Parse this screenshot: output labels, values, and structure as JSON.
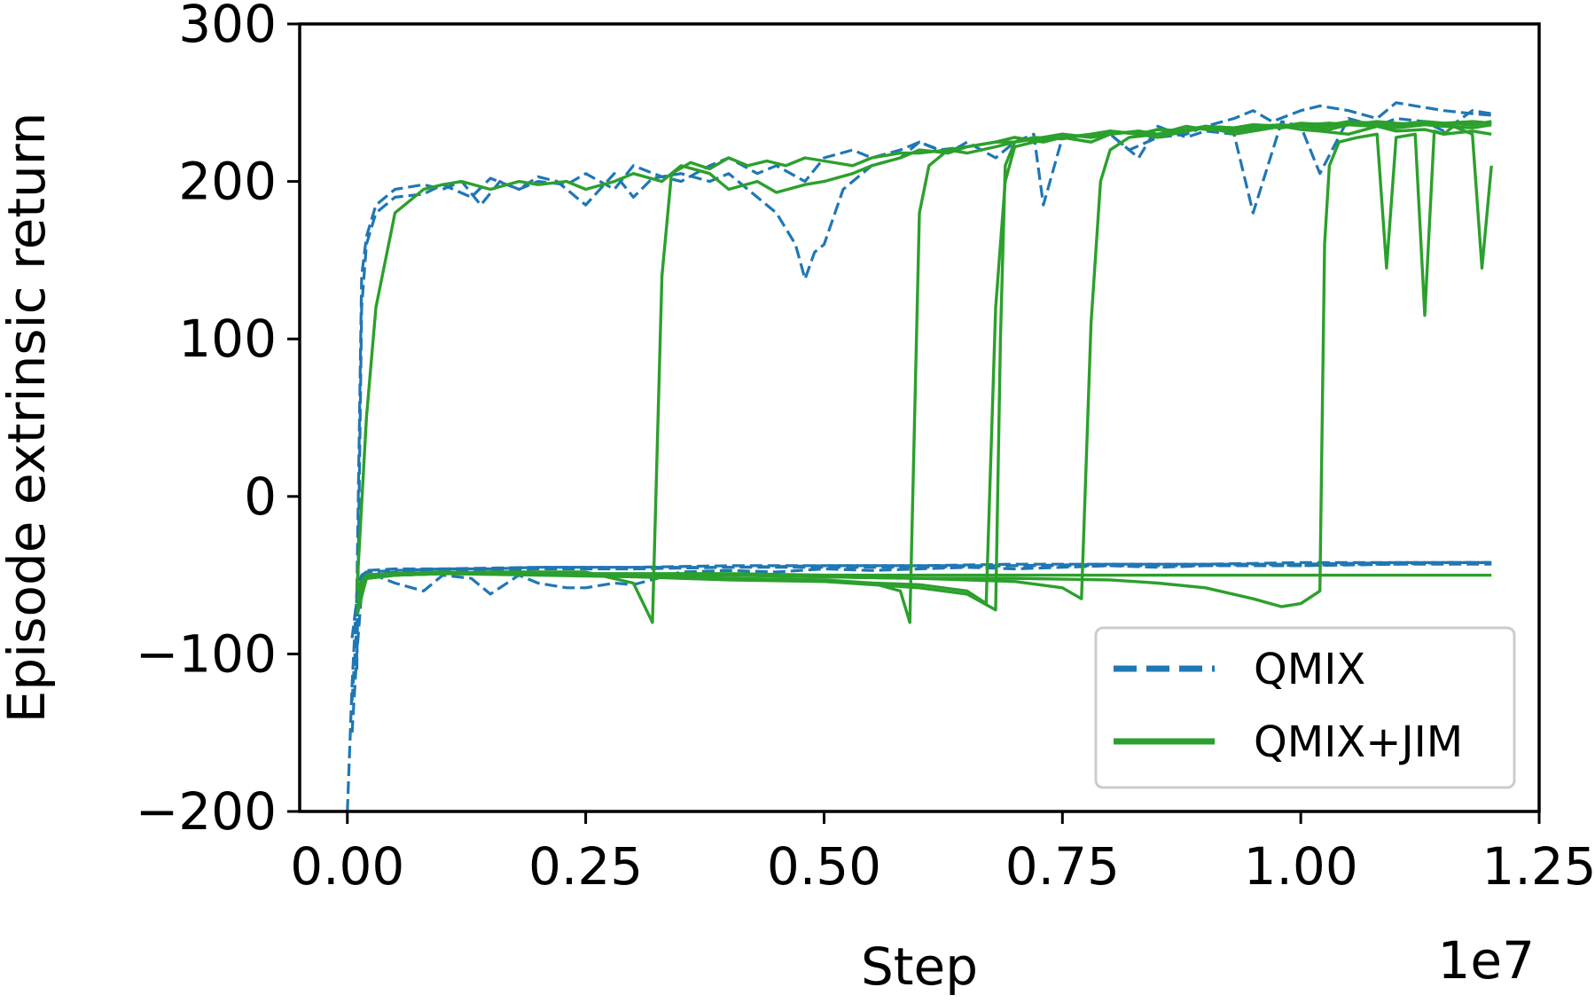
{
  "chart_data": {
    "type": "line",
    "title": "",
    "xlabel": "Step",
    "ylabel": "Episode extrinsic return",
    "x_offset_label": "1e7",
    "xlim": [
      -0.05,
      1.25
    ],
    "ylim": [
      -200,
      300
    ],
    "x_ticks": [
      0.0,
      0.25,
      0.5,
      0.75,
      1.0,
      1.25
    ],
    "x_tick_labels": [
      "0.00",
      "0.25",
      "0.50",
      "0.75",
      "1.00",
      "1.25"
    ],
    "y_ticks": [
      -200,
      -100,
      0,
      100,
      200,
      300
    ],
    "y_tick_labels": [
      "−200",
      "−100",
      "0",
      "100",
      "200",
      "300"
    ],
    "grid": false,
    "legend_position": "lower-right",
    "colors": {
      "qmix": "#1f77b4",
      "qmix_jim": "#2ca02c"
    },
    "legend": [
      {
        "label": "QMIX",
        "style": "dashed",
        "color": "#1f77b4"
      },
      {
        "label": "QMIX+JIM",
        "style": "solid",
        "color": "#2ca02c"
      }
    ],
    "series": [
      {
        "group": "QMIX",
        "style": "dashed",
        "color": "#1f77b4",
        "x": [
          0.01,
          0.015,
          0.02,
          0.03,
          0.05,
          0.08,
          0.1,
          0.12,
          0.14,
          0.16,
          0.18,
          0.2,
          0.22,
          0.25,
          0.28,
          0.3,
          0.32,
          0.35,
          0.38,
          0.4,
          0.43,
          0.45,
          0.47,
          0.48,
          0.49,
          0.5,
          0.52,
          0.55,
          0.58,
          0.6,
          0.62,
          0.65,
          0.68,
          0.7,
          0.72,
          0.75,
          0.78,
          0.8,
          0.82,
          0.85,
          0.88,
          0.9,
          0.93,
          0.95,
          0.97,
          1.0,
          1.02,
          1.05,
          1.08,
          1.1,
          1.12,
          1.15,
          1.18,
          1.2
        ],
        "y": [
          -60,
          140,
          165,
          185,
          195,
          198,
          195,
          200,
          185,
          200,
          195,
          203,
          200,
          185,
          205,
          190,
          202,
          205,
          200,
          205,
          190,
          180,
          160,
          138,
          155,
          160,
          195,
          210,
          215,
          225,
          220,
          222,
          225,
          228,
          225,
          228,
          225,
          230,
          220,
          228,
          230,
          235,
          240,
          245,
          238,
          245,
          248,
          245,
          240,
          250,
          248,
          245,
          243,
          242
        ]
      },
      {
        "group": "QMIX",
        "style": "dashed",
        "color": "#1f77b4",
        "x": [
          0.01,
          0.015,
          0.02,
          0.03,
          0.05,
          0.08,
          0.1,
          0.13,
          0.15,
          0.18,
          0.2,
          0.23,
          0.25,
          0.28,
          0.3,
          0.33,
          0.35,
          0.38,
          0.4,
          0.43,
          0.45,
          0.48,
          0.5,
          0.53,
          0.55,
          0.58,
          0.6,
          0.63,
          0.65,
          0.68,
          0.7,
          0.72,
          0.73,
          0.75,
          0.78,
          0.8,
          0.83,
          0.85,
          0.88,
          0.9,
          0.93,
          0.95,
          0.98,
          1.0,
          1.02,
          1.05,
          1.08,
          1.1,
          1.13,
          1.15,
          1.18,
          1.2
        ],
        "y": [
          -110,
          120,
          160,
          180,
          190,
          192,
          198,
          190,
          202,
          195,
          200,
          198,
          205,
          195,
          210,
          203,
          200,
          210,
          215,
          205,
          210,
          200,
          215,
          220,
          215,
          220,
          225,
          218,
          225,
          215,
          225,
          230,
          185,
          228,
          225,
          230,
          215,
          235,
          228,
          232,
          230,
          180,
          238,
          235,
          205,
          240,
          235,
          240,
          238,
          232,
          245,
          243
        ]
      },
      {
        "group": "QMIX",
        "style": "dashed",
        "color": "#1f77b4",
        "x": [
          0.0,
          0.005,
          0.01,
          0.015,
          0.02,
          0.05,
          0.08,
          0.1,
          0.13,
          0.15,
          0.18,
          0.2,
          0.23,
          0.25,
          0.28,
          0.3,
          0.35,
          0.4,
          0.45,
          0.5,
          0.55,
          0.6,
          0.65,
          0.7,
          0.75,
          0.8,
          0.85,
          0.9,
          0.95,
          1.0,
          1.05,
          1.1,
          1.15,
          1.2
        ],
        "y": [
          -200,
          -120,
          -60,
          -50,
          -48,
          -55,
          -60,
          -50,
          -52,
          -62,
          -50,
          -55,
          -58,
          -58,
          -55,
          -56,
          -48,
          -47,
          -48,
          -46,
          -47,
          -46,
          -45,
          -46,
          -45,
          -44,
          -45,
          -44,
          -43,
          -44,
          -43,
          -43,
          -42,
          -42
        ]
      },
      {
        "group": "QMIX",
        "style": "dashed",
        "color": "#1f77b4",
        "x": [
          0.005,
          0.01,
          0.015,
          0.02,
          0.05,
          0.1,
          0.15,
          0.2,
          0.3,
          0.4,
          0.5,
          0.6,
          0.7,
          0.8,
          0.9,
          1.0,
          1.1,
          1.2
        ],
        "y": [
          -130,
          -80,
          -55,
          -48,
          -47,
          -46,
          -46,
          -45,
          -45,
          -44,
          -44,
          -44,
          -43,
          -43,
          -43,
          -42,
          -42,
          -42
        ]
      },
      {
        "group": "QMIX",
        "style": "dashed",
        "color": "#1f77b4",
        "x": [
          0.005,
          0.01,
          0.015,
          0.02,
          0.05,
          0.1,
          0.15,
          0.2,
          0.3,
          0.4,
          0.5,
          0.6,
          0.7,
          0.8,
          0.9,
          1.0,
          1.1,
          1.2
        ],
        "y": [
          -150,
          -100,
          -60,
          -50,
          -48,
          -47,
          -47,
          -46,
          -46,
          -45,
          -45,
          -45,
          -44,
          -44,
          -44,
          -44,
          -43,
          -43
        ]
      },
      {
        "group": "QMIX",
        "style": "dashed",
        "color": "#1f77b4",
        "x": [
          0.005,
          0.01,
          0.015,
          0.02,
          0.05,
          0.1,
          0.2,
          0.3,
          0.4,
          0.5,
          0.6,
          0.7,
          0.8,
          0.9,
          1.0,
          1.1,
          1.2
        ],
        "y": [
          -90,
          -65,
          -52,
          -47,
          -46,
          -46,
          -45,
          -45,
          -45,
          -44,
          -44,
          -44,
          -43,
          -43,
          -43,
          -42,
          -42
        ]
      },
      {
        "group": "QMIX+JIM",
        "style": "solid",
        "color": "#2ca02c",
        "x": [
          0.01,
          0.02,
          0.03,
          0.05,
          0.08,
          0.1,
          0.12,
          0.15,
          0.18,
          0.2,
          0.23,
          0.25,
          0.28,
          0.3,
          0.33,
          0.35,
          0.38,
          0.4,
          0.43,
          0.45,
          0.48,
          0.5,
          0.53,
          0.55,
          0.58,
          0.6,
          0.63,
          0.65,
          0.68,
          0.7,
          0.73,
          0.75,
          0.78,
          0.8,
          0.83,
          0.85,
          0.88,
          0.9,
          0.93,
          0.95,
          0.98,
          1.0,
          1.02,
          1.05,
          1.08,
          1.1,
          1.13,
          1.15,
          1.18,
          1.2
        ],
        "y": [
          -60,
          50,
          120,
          180,
          195,
          198,
          200,
          195,
          200,
          198,
          200,
          195,
          200,
          205,
          200,
          210,
          205,
          195,
          200,
          193,
          198,
          200,
          205,
          210,
          215,
          220,
          218,
          222,
          225,
          228,
          225,
          228,
          230,
          232,
          230,
          228,
          232,
          235,
          230,
          232,
          235,
          233,
          232,
          230,
          235,
          232,
          233,
          230,
          232,
          230
        ]
      },
      {
        "group": "QMIX+JIM",
        "style": "solid",
        "color": "#2ca02c",
        "x": [
          0.01,
          0.02,
          0.05,
          0.1,
          0.15,
          0.2,
          0.25,
          0.3,
          0.32,
          0.33,
          0.34,
          0.36,
          0.38,
          0.4,
          0.42,
          0.44,
          0.46,
          0.48,
          0.5,
          0.53,
          0.55,
          0.58,
          0.6,
          0.63,
          0.65,
          0.68,
          0.7,
          0.73,
          0.75,
          0.78,
          0.8,
          0.83,
          0.85,
          0.88,
          0.9,
          0.93,
          0.95,
          0.98,
          1.0,
          1.03,
          1.05,
          1.08,
          1.1,
          1.13,
          1.15,
          1.18,
          1.2
        ],
        "y": [
          -65,
          -52,
          -50,
          -49,
          -48,
          -48,
          -48,
          -55,
          -80,
          140,
          205,
          212,
          208,
          215,
          210,
          213,
          210,
          215,
          213,
          210,
          215,
          218,
          218,
          220,
          222,
          225,
          225,
          228,
          230,
          228,
          230,
          232,
          230,
          233,
          235,
          232,
          233,
          235,
          235,
          233,
          236,
          235,
          234,
          236,
          235,
          234,
          236
        ]
      },
      {
        "group": "QMIX+JIM",
        "style": "solid",
        "color": "#2ca02c",
        "x": [
          0.01,
          0.02,
          0.05,
          0.1,
          0.2,
          0.3,
          0.4,
          0.5,
          0.55,
          0.58,
          0.59,
          0.6,
          0.61,
          0.63,
          0.65,
          0.68,
          0.7,
          0.73,
          0.75,
          0.78,
          0.8,
          0.83,
          0.85,
          0.88,
          0.9,
          0.93,
          0.95,
          0.98,
          1.0,
          1.03,
          1.05,
          1.08,
          1.1,
          1.13,
          1.15,
          1.18,
          1.2
        ],
        "y": [
          -70,
          -52,
          -50,
          -49,
          -49,
          -50,
          -52,
          -53,
          -55,
          -60,
          -80,
          180,
          210,
          220,
          218,
          222,
          225,
          228,
          230,
          228,
          232,
          230,
          233,
          232,
          235,
          234,
          236,
          235,
          237,
          236,
          238,
          237,
          236,
          238,
          237,
          236,
          238
        ]
      },
      {
        "group": "QMIX+JIM",
        "style": "solid",
        "color": "#2ca02c",
        "x": [
          0.01,
          0.02,
          0.05,
          0.1,
          0.2,
          0.3,
          0.4,
          0.5,
          0.6,
          0.65,
          0.67,
          0.68,
          0.69,
          0.7,
          0.72,
          0.75,
          0.78,
          0.8,
          0.83,
          0.85,
          0.88,
          0.9,
          0.93,
          0.95,
          0.98,
          1.0,
          1.03,
          1.05,
          1.08,
          1.1,
          1.13,
          1.15,
          1.18,
          1.2
        ],
        "y": [
          -65,
          -52,
          -50,
          -49,
          -50,
          -51,
          -53,
          -54,
          -56,
          -60,
          -68,
          120,
          200,
          222,
          225,
          228,
          225,
          230,
          232,
          230,
          235,
          233,
          232,
          235,
          234,
          236,
          235,
          237,
          236,
          235,
          237,
          236,
          238,
          237
        ]
      },
      {
        "group": "QMIX+JIM",
        "style": "solid",
        "color": "#2ca02c",
        "x": [
          0.01,
          0.02,
          0.05,
          0.1,
          0.2,
          0.3,
          0.4,
          0.5,
          0.6,
          0.65,
          0.68,
          0.685,
          0.69,
          0.7,
          0.72,
          0.75,
          0.78,
          0.8,
          0.83,
          0.85,
          0.88,
          0.9,
          0.93,
          0.95,
          0.98,
          1.0,
          1.03,
          1.05,
          1.08,
          1.1,
          1.13,
          1.15,
          1.18,
          1.2
        ],
        "y": [
          -60,
          -50,
          -49,
          -48,
          -49,
          -50,
          -52,
          -54,
          -58,
          -62,
          -72,
          100,
          210,
          225,
          228,
          227,
          230,
          232,
          230,
          233,
          232,
          235,
          234,
          236,
          235,
          236,
          237,
          236,
          238,
          237,
          236,
          237,
          238,
          237
        ]
      },
      {
        "group": "QMIX+JIM",
        "style": "solid",
        "color": "#2ca02c",
        "x": [
          0.01,
          0.02,
          0.05,
          0.1,
          0.2,
          0.3,
          0.4,
          0.5,
          0.6,
          0.7,
          0.75,
          0.77,
          0.78,
          0.79,
          0.8,
          0.82,
          0.85,
          0.88,
          0.9,
          0.93,
          0.95,
          0.98,
          1.0,
          1.03,
          1.05,
          1.08,
          1.1,
          1.13,
          1.15,
          1.18,
          1.2
        ],
        "y": [
          -70,
          -52,
          -50,
          -49,
          -49,
          -50,
          -50,
          -51,
          -52,
          -54,
          -58,
          -65,
          110,
          200,
          220,
          228,
          230,
          232,
          234,
          233,
          235,
          236,
          235,
          237,
          236,
          237,
          236,
          238,
          237,
          236,
          238
        ]
      },
      {
        "group": "QMIX+JIM",
        "style": "solid",
        "color": "#2ca02c",
        "x": [
          0.01,
          0.02,
          0.05,
          0.1,
          0.2,
          0.3,
          0.4,
          0.5,
          0.6,
          0.7,
          0.8,
          0.85,
          0.9,
          0.95,
          0.98,
          1.0,
          1.02,
          1.025,
          1.03,
          1.04,
          1.06,
          1.08,
          1.09,
          1.1,
          1.12,
          1.13,
          1.14,
          1.15,
          1.16,
          1.18,
          1.19,
          1.2
        ],
        "y": [
          -75,
          -52,
          -50,
          -49,
          -49,
          -50,
          -50,
          -51,
          -52,
          -52,
          -53,
          -55,
          -58,
          -65,
          -70,
          -68,
          -60,
          160,
          210,
          225,
          228,
          230,
          145,
          228,
          230,
          115,
          232,
          230,
          235,
          230,
          145,
          210
        ]
      },
      {
        "group": "QMIX+JIM",
        "style": "solid",
        "color": "#2ca02c",
        "x": [
          0.01,
          0.02,
          0.05,
          0.1,
          0.2,
          0.3,
          0.4,
          0.5,
          0.6,
          0.7,
          0.8,
          0.9,
          1.0,
          1.1,
          1.2
        ],
        "y": [
          -58,
          -50,
          -49,
          -49,
          -49,
          -49,
          -49,
          -50,
          -50,
          -50,
          -50,
          -50,
          -50,
          -50,
          -50
        ]
      }
    ]
  }
}
